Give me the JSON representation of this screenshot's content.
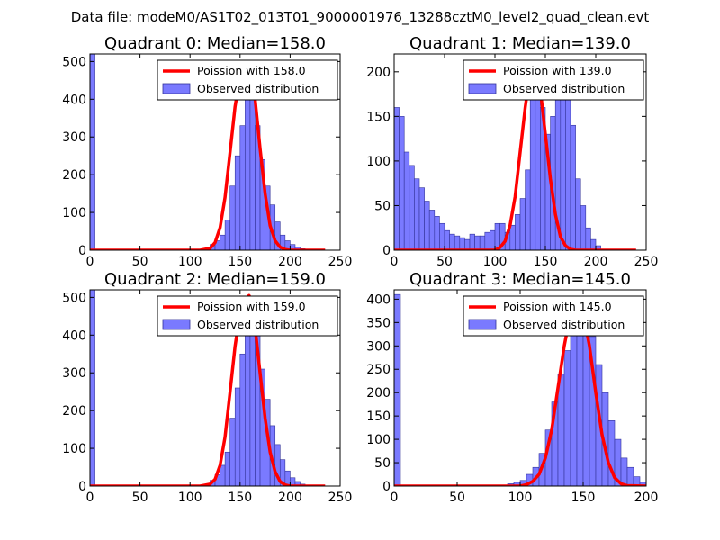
{
  "figure": {
    "suptitle": "Data file: modeM0/AS1T02_013T01_9000001976_13288cztM0_level2_quad_clean.evt"
  },
  "colors": {
    "hist_fill": "#7a7aff",
    "hist_edge": "#33339a",
    "fit_line": "#ff0000",
    "axes": "#000000"
  },
  "chart_data": [
    {
      "type": "bar",
      "title": "Quadrant 0: Median=158.0",
      "xlim": [
        0,
        250
      ],
      "ylim": [
        0,
        520
      ],
      "xticks": [
        0,
        50,
        100,
        150,
        200,
        250
      ],
      "yticks": [
        0,
        100,
        200,
        300,
        400,
        500
      ],
      "bin_width": 5,
      "legend": {
        "position": "top-right",
        "line_label": "Poission with 158.0",
        "bar_label": "Observed distribution"
      },
      "hist": [
        [
          0,
          520
        ],
        [
          115,
          5
        ],
        [
          120,
          15
        ],
        [
          125,
          25
        ],
        [
          130,
          40
        ],
        [
          135,
          80
        ],
        [
          140,
          170
        ],
        [
          145,
          250
        ],
        [
          150,
          330
        ],
        [
          155,
          440
        ],
        [
          160,
          410
        ],
        [
          165,
          330
        ],
        [
          170,
          240
        ],
        [
          175,
          170
        ],
        [
          180,
          120
        ],
        [
          185,
          75
        ],
        [
          190,
          40
        ],
        [
          195,
          25
        ],
        [
          200,
          15
        ],
        [
          205,
          8
        ],
        [
          210,
          4
        ],
        [
          215,
          2
        ]
      ],
      "poisson_mean": 158,
      "poisson_x": [
        0,
        110,
        120,
        125,
        130,
        135,
        140,
        145,
        150,
        155,
        158,
        160,
        165,
        170,
        175,
        180,
        185,
        190,
        195,
        200,
        235
      ],
      "poisson_y": [
        0,
        0,
        5,
        20,
        60,
        140,
        260,
        380,
        460,
        495,
        500,
        485,
        400,
        270,
        150,
        65,
        25,
        8,
        2,
        0,
        0
      ]
    },
    {
      "type": "bar",
      "title": "Quadrant 1: Median=139.0",
      "xlim": [
        0,
        250
      ],
      "ylim": [
        0,
        220
      ],
      "xticks": [
        0,
        50,
        100,
        150,
        200,
        250
      ],
      "yticks": [
        0,
        50,
        100,
        150,
        200
      ],
      "bin_width": 5,
      "legend": {
        "position": "top-right",
        "line_label": "Poission with 139.0",
        "bar_label": "Observed distribution"
      },
      "hist": [
        [
          0,
          160
        ],
        [
          5,
          150
        ],
        [
          10,
          110
        ],
        [
          15,
          95
        ],
        [
          20,
          80
        ],
        [
          25,
          70
        ],
        [
          30,
          55
        ],
        [
          35,
          45
        ],
        [
          40,
          38
        ],
        [
          45,
          30
        ],
        [
          50,
          22
        ],
        [
          55,
          18
        ],
        [
          60,
          16
        ],
        [
          65,
          14
        ],
        [
          70,
          12
        ],
        [
          75,
          18
        ],
        [
          80,
          16
        ],
        [
          85,
          16
        ],
        [
          90,
          20
        ],
        [
          95,
          22
        ],
        [
          100,
          30
        ],
        [
          105,
          30
        ],
        [
          110,
          20
        ],
        [
          115,
          28
        ],
        [
          120,
          40
        ],
        [
          125,
          58
        ],
        [
          130,
          90
        ],
        [
          135,
          170
        ],
        [
          140,
          210
        ],
        [
          145,
          160
        ],
        [
          150,
          130
        ],
        [
          155,
          150
        ],
        [
          160,
          175
        ],
        [
          165,
          180
        ],
        [
          170,
          170
        ],
        [
          175,
          140
        ],
        [
          180,
          80
        ],
        [
          185,
          50
        ],
        [
          190,
          25
        ],
        [
          195,
          12
        ],
        [
          200,
          5
        ]
      ],
      "poisson_mean": 139,
      "poisson_x": [
        0,
        100,
        105,
        110,
        115,
        120,
        125,
        130,
        135,
        139,
        145,
        150,
        155,
        160,
        165,
        170,
        175,
        180,
        190,
        240
      ],
      "poisson_y": [
        0,
        0,
        3,
        10,
        28,
        60,
        110,
        160,
        200,
        210,
        180,
        130,
        80,
        40,
        15,
        5,
        1,
        0,
        0,
        0
      ]
    },
    {
      "type": "bar",
      "title": "Quadrant 2: Median=159.0",
      "xlim": [
        0,
        250
      ],
      "ylim": [
        0,
        520
      ],
      "xticks": [
        0,
        50,
        100,
        150,
        200,
        250
      ],
      "yticks": [
        0,
        100,
        200,
        300,
        400,
        500
      ],
      "bin_width": 5,
      "legend": {
        "position": "top-right",
        "line_label": "Poission with 159.0",
        "bar_label": "Observed distribution"
      },
      "hist": [
        [
          0,
          520
        ],
        [
          115,
          5
        ],
        [
          120,
          15
        ],
        [
          125,
          30
        ],
        [
          130,
          55
        ],
        [
          135,
          90
        ],
        [
          140,
          180
        ],
        [
          145,
          260
        ],
        [
          150,
          350
        ],
        [
          155,
          440
        ],
        [
          160,
          460
        ],
        [
          165,
          400
        ],
        [
          170,
          310
        ],
        [
          175,
          230
        ],
        [
          180,
          160
        ],
        [
          185,
          110
        ],
        [
          190,
          70
        ],
        [
          195,
          40
        ],
        [
          200,
          22
        ],
        [
          205,
          12
        ],
        [
          210,
          5
        ],
        [
          215,
          2
        ]
      ],
      "poisson_mean": 159,
      "poisson_x": [
        0,
        110,
        120,
        125,
        130,
        135,
        140,
        145,
        150,
        155,
        159,
        160,
        165,
        170,
        175,
        180,
        185,
        190,
        195,
        200,
        235
      ],
      "poisson_y": [
        0,
        0,
        5,
        18,
        55,
        130,
        250,
        370,
        460,
        495,
        505,
        500,
        420,
        300,
        180,
        90,
        38,
        12,
        3,
        0,
        0
      ]
    },
    {
      "type": "bar",
      "title": "Quadrant 3: Median=145.0",
      "xlim": [
        0,
        200
      ],
      "ylim": [
        0,
        420
      ],
      "xticks": [
        0,
        50,
        100,
        150,
        200
      ],
      "yticks": [
        0,
        50,
        100,
        150,
        200,
        250,
        300,
        350,
        400
      ],
      "bin_width": 5,
      "legend": {
        "position": "top-right",
        "line_label": "Poission with 145.0",
        "bar_label": "Observed distribution"
      },
      "hist": [
        [
          0,
          410
        ],
        [
          85,
          2
        ],
        [
          90,
          5
        ],
        [
          95,
          8
        ],
        [
          100,
          12
        ],
        [
          105,
          25
        ],
        [
          110,
          40
        ],
        [
          115,
          70
        ],
        [
          120,
          120
        ],
        [
          125,
          180
        ],
        [
          130,
          240
        ],
        [
          135,
          290
        ],
        [
          140,
          380
        ],
        [
          145,
          400
        ],
        [
          150,
          370
        ],
        [
          155,
          320
        ],
        [
          160,
          260
        ],
        [
          165,
          200
        ],
        [
          170,
          140
        ],
        [
          175,
          100
        ],
        [
          180,
          60
        ],
        [
          185,
          40
        ],
        [
          190,
          20
        ],
        [
          195,
          8
        ]
      ],
      "poisson_mean": 145,
      "poisson_x": [
        0,
        100,
        105,
        110,
        115,
        120,
        125,
        130,
        135,
        140,
        145,
        150,
        155,
        160,
        165,
        170,
        175,
        180,
        185,
        200
      ],
      "poisson_y": [
        0,
        0,
        3,
        10,
        25,
        60,
        120,
        210,
        300,
        370,
        400,
        370,
        300,
        200,
        110,
        50,
        18,
        5,
        1,
        0
      ]
    }
  ]
}
